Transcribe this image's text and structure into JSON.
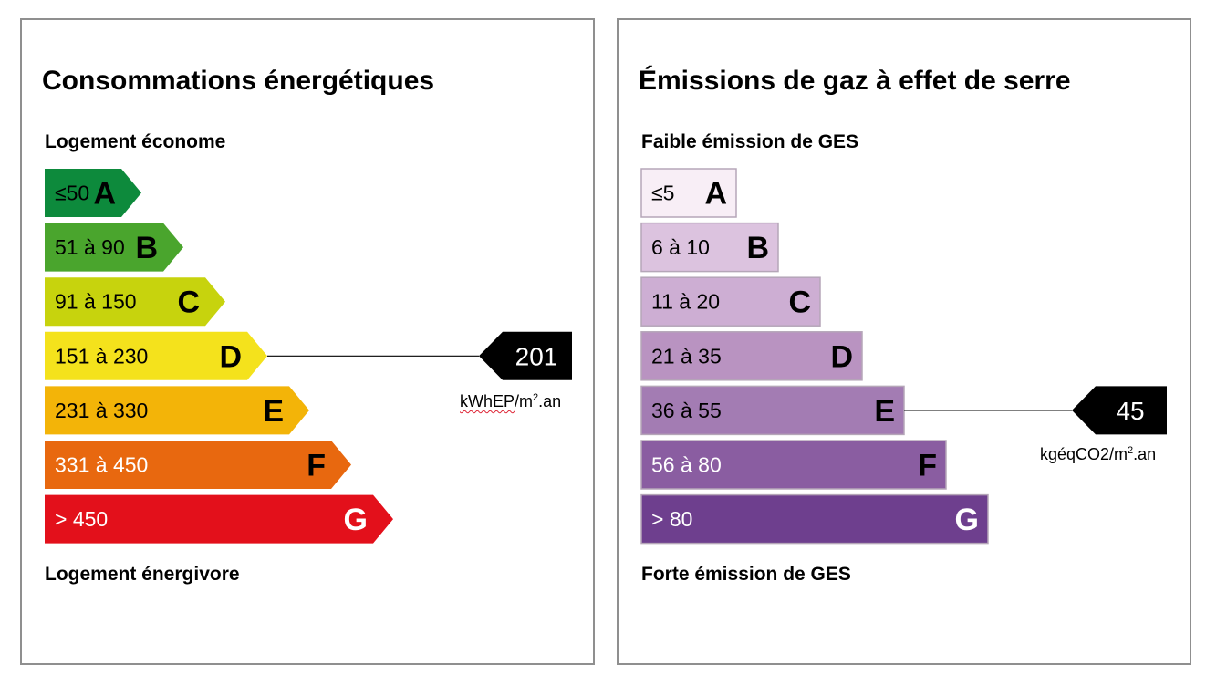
{
  "energy": {
    "title": "Consommations énergétiques",
    "top_label": "Logement économe",
    "bottom_label": "Logement énergivore",
    "value": "201",
    "unit_main": "kWhEP",
    "unit_suffix": "/m",
    "unit_exp": "2",
    "unit_end": ".an",
    "current_class": "D"
  },
  "ges": {
    "title": "Émissions de gaz à effet de serre",
    "top_label": "Faible émission de GES",
    "bottom_label": "Forte émission de GES",
    "value": "45",
    "unit_main": "kgéqCO2/m",
    "unit_exp": "2",
    "unit_end": ".an",
    "current_class": "E"
  },
  "chart_data": [
    {
      "type": "bar",
      "title": "Consommations énergétiques",
      "categories": [
        "A",
        "B",
        "C",
        "D",
        "E",
        "F",
        "G"
      ],
      "ranges": [
        "≤50",
        "51 à 90",
        "91 à 150",
        "151 à 230",
        "231 à 330",
        "331 à 450",
        "> 450"
      ],
      "colors": [
        "#0d8a3c",
        "#4aa52d",
        "#c7d30d",
        "#f4e21c",
        "#f3b408",
        "#e8680f",
        "#e3101b"
      ],
      "value": 201,
      "value_class": "D",
      "unit": "kWhEP/m².an"
    },
    {
      "type": "bar",
      "title": "Émissions de gaz à effet de serre",
      "categories": [
        "A",
        "B",
        "C",
        "D",
        "E",
        "F",
        "G"
      ],
      "ranges": [
        "≤5",
        "6 à 10",
        "11 à 20",
        "21 à 35",
        "36 à 55",
        "56 à 80",
        "> 80"
      ],
      "colors": [
        "#f8eef6",
        "#dcc3df",
        "#cdaed3",
        "#b993c1",
        "#a37cb3",
        "#8a5da1",
        "#6e3f8e"
      ],
      "value": 45,
      "value_class": "E",
      "unit": "kgéqCO2/m².an"
    }
  ]
}
